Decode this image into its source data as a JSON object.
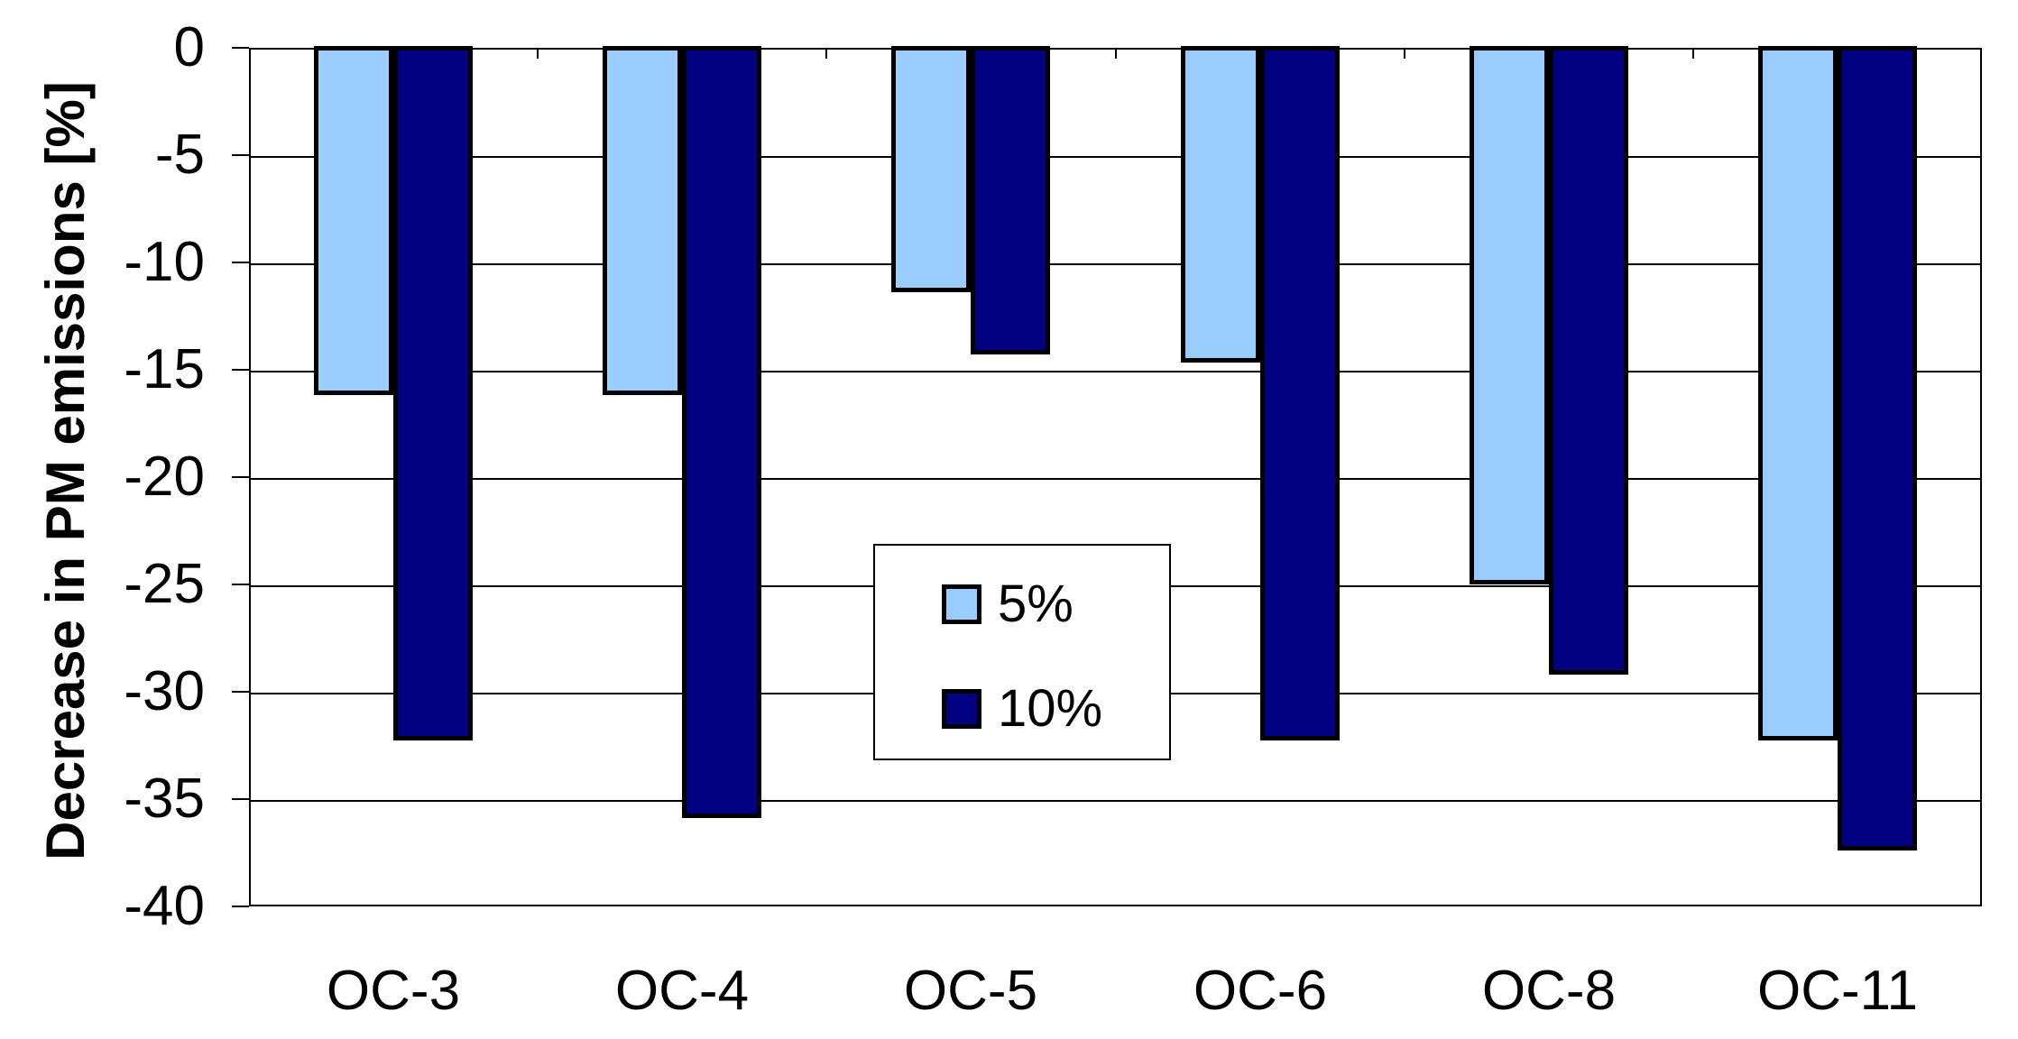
{
  "chart_data": {
    "type": "bar",
    "title": "",
    "xlabel": "",
    "ylabel": "Decrease in PM emissions [%]",
    "categories": [
      "OC-3",
      "OC-4",
      "OC-5",
      "OC-6",
      "OC-8",
      "OC-11"
    ],
    "series": [
      {
        "name": "5%",
        "color": "#99CCFF",
        "values": [
          -16.1,
          -16.1,
          -11.3,
          -14.6,
          -24.9,
          -32.2
        ]
      },
      {
        "name": "10%",
        "color": "#000080",
        "values": [
          -32.2,
          -35.8,
          -14.2,
          -32.2,
          -29.1,
          -37.3
        ]
      }
    ],
    "ylim": [
      -40,
      0
    ],
    "ytick_step": 5,
    "yticks": [
      "0",
      "-5",
      "-10",
      "-15",
      "-20",
      "-25",
      "-30",
      "-35",
      "-40"
    ],
    "grid": true,
    "legend_position": "center",
    "bar_outline_color": "#000000",
    "background_color": "#FFFFFF"
  }
}
